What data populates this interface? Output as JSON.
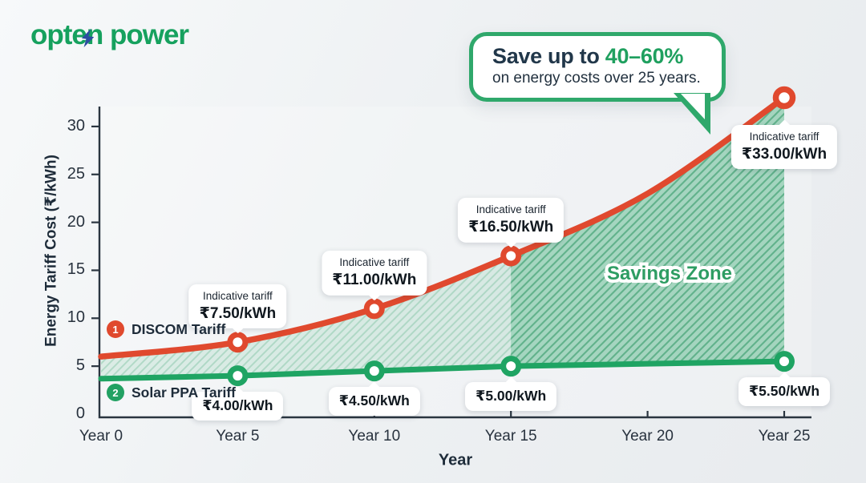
{
  "colors": {
    "brand_green": "#16A15E",
    "bolt_blue": "#2D4DA1",
    "discom_red": "#E0492E",
    "solar_green": "#1FA463",
    "navy": "#21374A",
    "highlight_green": "#1FA05F",
    "savings_zone_green": "#2E9D63",
    "callout_border": "#2FA86B"
  },
  "logo": {
    "text": "opten power",
    "bolt_icon": "lightning-bolt"
  },
  "callout": {
    "prefix": "Save up to",
    "highlight": "40–60%",
    "line2": "on energy costs over 25 years."
  },
  "chart_data": {
    "type": "line",
    "title": "",
    "xlabel": "Year",
    "ylabel": "Energy Tariff Cost (₹/kWh)",
    "x": [
      0,
      5,
      10,
      15,
      20,
      25
    ],
    "x_tick_labels": [
      "Year 0",
      "Year 5",
      "Year 10",
      "Year 15",
      "Year 20",
      "Year 25"
    ],
    "y_ticks": [
      0,
      5,
      10,
      15,
      20,
      25,
      30
    ],
    "ylim": [
      0,
      34
    ],
    "grid": false,
    "legend_position": "on-chart",
    "series": [
      {
        "name": "DISCOM Tariff",
        "legend_badge": "1",
        "color": "#E0492E",
        "smooth": true,
        "values": [
          6.0,
          7.5,
          11.0,
          16.5,
          23.0,
          33.0
        ],
        "marker_years": [
          5,
          10,
          15,
          25
        ]
      },
      {
        "name": "Solar PPA Tariff",
        "legend_badge": "2",
        "color": "#1FA463",
        "smooth": false,
        "values": [
          3.7,
          4.0,
          4.5,
          5.0,
          5.25,
          5.5
        ],
        "marker_years": [
          5,
          10,
          15,
          25
        ]
      }
    ],
    "savings_zone": {
      "label": "Savings Zone",
      "dark_from_year": 15
    },
    "tooltips": [
      {
        "series": "DISCOM Tariff",
        "year": 5,
        "label": "Indicative tariff",
        "value": "₹7.50/kWh",
        "placement": "above"
      },
      {
        "series": "DISCOM Tariff",
        "year": 10,
        "label": "Indicative tariff",
        "value": "₹11.00/kWh",
        "placement": "above"
      },
      {
        "series": "DISCOM Tariff",
        "year": 15,
        "label": "Indicative tariff",
        "value": "₹16.50/kWh",
        "placement": "above"
      },
      {
        "series": "DISCOM Tariff",
        "year": 25,
        "label": "Indicative tariff",
        "value": "₹33.00/kWh",
        "placement": "below"
      },
      {
        "series": "Solar PPA Tariff",
        "year": 5,
        "value": "₹4.00/kWh",
        "placement": "below"
      },
      {
        "series": "Solar PPA Tariff",
        "year": 10,
        "value": "₹4.50/kWh",
        "placement": "below"
      },
      {
        "series": "Solar PPA Tariff",
        "year": 15,
        "value": "₹5.00/kWh",
        "placement": "below"
      },
      {
        "series": "Solar PPA Tariff",
        "year": 25,
        "value": "₹5.50/kWh",
        "placement": "below"
      }
    ]
  }
}
